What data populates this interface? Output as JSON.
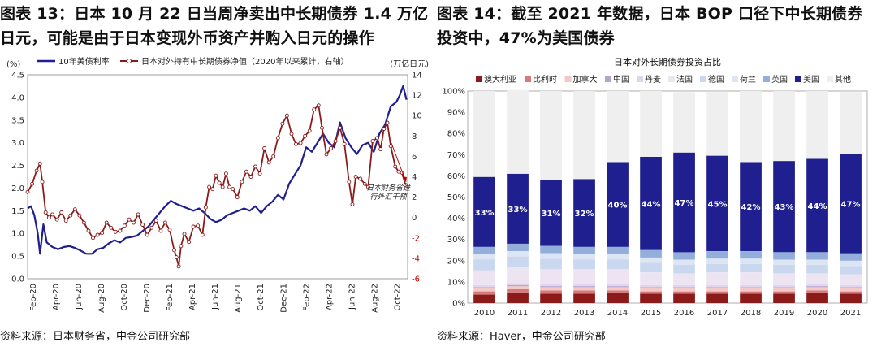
{
  "left": {
    "title": "图表 13：日本 10 月 22 日当周净卖出中长期债券 1.4 万亿日元，可能是由于日本变现外币资产并购入日元的操作",
    "source": "资料来源：日本财务省，中金公司研究部",
    "chart_data": {
      "type": "line",
      "left_unit": "(%)",
      "right_unit": "(万亿日元)",
      "left_ylim": [
        0,
        4.5
      ],
      "left_ticks": [
        "0.0",
        "0.5",
        "1.0",
        "1.5",
        "2.0",
        "2.5",
        "3.0",
        "3.5",
        "4.0",
        "4.5"
      ],
      "right_ylim": [
        -6,
        14
      ],
      "right_ticks": [
        "-6",
        "-4",
        "-2",
        "0",
        "2",
        "4",
        "6",
        "8",
        "10",
        "12",
        "14"
      ],
      "x_ticks": [
        "Feb-20",
        "Apr-20",
        "Jun-20",
        "Aug-20",
        "Oct-20",
        "Dec-20",
        "Feb-21",
        "Apr-21",
        "Jun-21",
        "Aug-21",
        "Oct-21",
        "Dec-21",
        "Feb-22",
        "Apr-22",
        "Jun-22",
        "Aug-22",
        "Oct-22"
      ],
      "x_range": [
        0,
        33.7
      ],
      "annotation": "日本财务省进行外汇干预",
      "series": [
        {
          "name": "10年美债利率",
          "axis": "left",
          "color": "#1F1F8F",
          "points": [
            [
              0,
              1.55
            ],
            [
              0.3,
              1.6
            ],
            [
              0.6,
              1.4
            ],
            [
              0.9,
              1.0
            ],
            [
              1.1,
              0.55
            ],
            [
              1.4,
              1.2
            ],
            [
              1.7,
              0.8
            ],
            [
              2.2,
              0.7
            ],
            [
              2.7,
              0.65
            ],
            [
              3.2,
              0.7
            ],
            [
              3.7,
              0.72
            ],
            [
              4.2,
              0.68
            ],
            [
              4.7,
              0.62
            ],
            [
              5.2,
              0.55
            ],
            [
              5.7,
              0.55
            ],
            [
              6.2,
              0.65
            ],
            [
              6.7,
              0.68
            ],
            [
              7.2,
              0.78
            ],
            [
              7.7,
              0.85
            ],
            [
              8.2,
              0.8
            ],
            [
              8.7,
              0.9
            ],
            [
              9.2,
              0.92
            ],
            [
              9.7,
              0.95
            ],
            [
              10.2,
              1.05
            ],
            [
              10.7,
              1.15
            ],
            [
              11.2,
              1.3
            ],
            [
              11.7,
              1.45
            ],
            [
              12.2,
              1.6
            ],
            [
              12.7,
              1.72
            ],
            [
              13.2,
              1.65
            ],
            [
              13.7,
              1.6
            ],
            [
              14.2,
              1.55
            ],
            [
              14.7,
              1.5
            ],
            [
              15.2,
              1.55
            ],
            [
              15.7,
              1.45
            ],
            [
              16.2,
              1.32
            ],
            [
              16.7,
              1.25
            ],
            [
              17.2,
              1.3
            ],
            [
              17.7,
              1.4
            ],
            [
              18.2,
              1.45
            ],
            [
              18.7,
              1.5
            ],
            [
              19.2,
              1.55
            ],
            [
              19.7,
              1.5
            ],
            [
              20.2,
              1.6
            ],
            [
              20.7,
              1.45
            ],
            [
              21.2,
              1.6
            ],
            [
              21.7,
              1.7
            ],
            [
              22.2,
              1.85
            ],
            [
              22.7,
              1.75
            ],
            [
              23.2,
              2.1
            ],
            [
              23.7,
              2.3
            ],
            [
              24.2,
              2.5
            ],
            [
              24.7,
              2.9
            ],
            [
              25.2,
              2.8
            ],
            [
              25.7,
              3.0
            ],
            [
              26.2,
              3.2
            ],
            [
              26.7,
              3.0
            ],
            [
              27.2,
              2.9
            ],
            [
              27.7,
              3.45
            ],
            [
              28.2,
              3.1
            ],
            [
              28.7,
              2.9
            ],
            [
              29.2,
              2.75
            ],
            [
              29.7,
              2.95
            ],
            [
              30.2,
              3.0
            ],
            [
              30.7,
              2.8
            ],
            [
              31.2,
              3.2
            ],
            [
              31.7,
              3.4
            ],
            [
              32.2,
              3.8
            ],
            [
              32.7,
              3.9
            ],
            [
              33.0,
              4.05
            ],
            [
              33.3,
              4.25
            ],
            [
              33.6,
              3.95
            ]
          ]
        },
        {
          "name": "日本对外持有中长期债券净值（2020年以来累计，右轴）",
          "axis": "right",
          "color": "#8B1A1A",
          "points": [
            [
              0,
              2.5
            ],
            [
              0.4,
              3.3
            ],
            [
              0.8,
              4.6
            ],
            [
              1.1,
              5.3
            ],
            [
              1.3,
              3.5
            ],
            [
              1.6,
              0.5
            ],
            [
              1.9,
              0.0
            ],
            [
              2.2,
              0.3
            ],
            [
              2.6,
              -0.2
            ],
            [
              3.0,
              0.5
            ],
            [
              3.4,
              -0.3
            ],
            [
              3.8,
              0.2
            ],
            [
              4.2,
              0.8
            ],
            [
              4.6,
              0.2
            ],
            [
              5.0,
              -0.5
            ],
            [
              5.4,
              -1.3
            ],
            [
              5.8,
              -2.0
            ],
            [
              6.2,
              -1.7
            ],
            [
              6.6,
              -1.5
            ],
            [
              7.0,
              -0.5
            ],
            [
              7.4,
              -1.0
            ],
            [
              7.8,
              -1.4
            ],
            [
              8.2,
              -1.3
            ],
            [
              8.6,
              -0.8
            ],
            [
              9.0,
              -0.2
            ],
            [
              9.4,
              -0.5
            ],
            [
              9.8,
              0.3
            ],
            [
              10.2,
              -0.7
            ],
            [
              10.6,
              -1.7
            ],
            [
              11.0,
              -1.0
            ],
            [
              11.4,
              -0.3
            ],
            [
              11.8,
              -1.3
            ],
            [
              12.2,
              -0.5
            ],
            [
              12.6,
              -1.2
            ],
            [
              13.0,
              -3.2
            ],
            [
              13.2,
              -3.9
            ],
            [
              13.4,
              -4.8
            ],
            [
              13.6,
              -2.8
            ],
            [
              13.9,
              -1.6
            ],
            [
              14.3,
              -2.4
            ],
            [
              14.7,
              -0.9
            ],
            [
              15.1,
              -0.8
            ],
            [
              15.5,
              -1.7
            ],
            [
              15.8,
              1.0
            ],
            [
              16.1,
              3.0
            ],
            [
              16.4,
              2.8
            ],
            [
              16.7,
              4.1
            ],
            [
              17.0,
              3.4
            ],
            [
              17.3,
              3.0
            ],
            [
              17.6,
              4.3
            ],
            [
              17.9,
              3.0
            ],
            [
              18.2,
              2.8
            ],
            [
              18.6,
              2.0
            ],
            [
              19.0,
              3.5
            ],
            [
              19.4,
              4.5
            ],
            [
              19.8,
              4.0
            ],
            [
              20.2,
              5.0
            ],
            [
              20.6,
              4.3
            ],
            [
              21.0,
              6.8
            ],
            [
              21.4,
              5.4
            ],
            [
              21.8,
              6.0
            ],
            [
              22.2,
              7.8
            ],
            [
              22.6,
              9.2
            ],
            [
              23.0,
              10.0
            ],
            [
              23.4,
              8.2
            ],
            [
              23.8,
              7.2
            ],
            [
              24.2,
              7.3
            ],
            [
              24.6,
              8.0
            ],
            [
              25.0,
              8.5
            ],
            [
              25.4,
              10.6
            ],
            [
              25.8,
              11.0
            ],
            [
              26.1,
              8.8
            ],
            [
              26.5,
              6.2
            ],
            [
              26.9,
              6.8
            ],
            [
              27.3,
              7.5
            ],
            [
              27.7,
              8.8
            ],
            [
              28.1,
              7.2
            ],
            [
              28.5,
              3.5
            ],
            [
              28.8,
              1.3
            ],
            [
              29.1,
              4.0
            ],
            [
              29.5,
              3.8
            ],
            [
              29.9,
              3.3
            ],
            [
              30.2,
              3.0
            ],
            [
              30.6,
              7.5
            ],
            [
              31.0,
              7.8
            ],
            [
              31.3,
              6.7
            ],
            [
              31.6,
              8.7
            ],
            [
              31.9,
              9.3
            ],
            [
              32.2,
              7.0
            ],
            [
              32.6,
              5.0
            ],
            [
              32.9,
              4.5
            ],
            [
              33.2,
              4.4
            ],
            [
              33.5,
              3.2
            ]
          ]
        }
      ]
    }
  },
  "right": {
    "title": "图表 14：截至 2021 年数据，日本 BOP 口径下中长期债券投资中，47%为美国债券",
    "source": "资料来源：Haver，中金公司研究部",
    "chart_data": {
      "type": "bar",
      "stacked": true,
      "title": "日本对外长期债券投资占比",
      "ylim": [
        0,
        100
      ],
      "y_ticks": [
        "0%",
        "10%",
        "20%",
        "30%",
        "40%",
        "50%",
        "60%",
        "70%",
        "80%",
        "90%",
        "100%"
      ],
      "categories": [
        "2010",
        "2011",
        "2012",
        "2013",
        "2014",
        "2015",
        "2016",
        "2017",
        "2018",
        "2019",
        "2020",
        "2021"
      ],
      "us_labels": [
        "33%",
        "33%",
        "31%",
        "32%",
        "40%",
        "44%",
        "47%",
        "45%",
        "42%",
        "43%",
        "44%",
        "47%"
      ],
      "series": [
        {
          "name": "澳大利亚",
          "color": "#8B1A1A",
          "values": [
            4,
            5,
            4.5,
            4.5,
            5,
            4.5,
            4.5,
            4.5,
            4.5,
            4.5,
            5,
            4.5
          ]
        },
        {
          "name": "比利时",
          "color": "#D87A7A",
          "values": [
            1.5,
            1.5,
            1.5,
            1.5,
            1,
            1,
            1,
            1,
            1,
            1,
            1,
            1
          ]
        },
        {
          "name": "加拿大",
          "color": "#F2C8C8",
          "values": [
            1.5,
            1.5,
            1.5,
            1.5,
            1.5,
            1.5,
            1.5,
            1.5,
            1.5,
            1.5,
            1.5,
            1.5
          ]
        },
        {
          "name": "中国",
          "color": "#B7A3CF",
          "values": [
            0.5,
            0.5,
            0.5,
            0.5,
            0.5,
            0.5,
            0.5,
            0.5,
            0.5,
            0.5,
            0.5,
            0.5
          ]
        },
        {
          "name": "丹麦",
          "color": "#E0D4EE",
          "values": [
            1,
            1,
            1,
            1,
            1,
            1,
            1,
            1,
            1,
            1,
            1,
            1
          ]
        },
        {
          "name": "法国",
          "color": "#EDE4F2",
          "values": [
            7,
            7.5,
            7,
            7,
            7,
            6,
            5.5,
            6,
            6,
            5.5,
            5,
            5
          ]
        },
        {
          "name": "德国",
          "color": "#C9D8EF",
          "values": [
            5,
            5,
            5,
            4.5,
            4.5,
            4.5,
            4,
            4,
            4,
            4,
            4,
            4
          ]
        },
        {
          "name": "荷兰",
          "color": "#DCE5F4",
          "values": [
            2.5,
            2.5,
            2.5,
            2.5,
            2.5,
            2.5,
            2.5,
            2.5,
            2.5,
            2.5,
            2.5,
            2.5
          ]
        },
        {
          "name": "英国",
          "color": "#93AEDB",
          "values": [
            3.5,
            3.5,
            3.5,
            3.5,
            3.5,
            3.5,
            3.5,
            3.5,
            3.5,
            3.5,
            3.5,
            3.5
          ]
        },
        {
          "name": "美国",
          "color": "#1F1F8F",
          "values": [
            33,
            33,
            31,
            32,
            40,
            44,
            47,
            45,
            42,
            43,
            44,
            47
          ]
        },
        {
          "name": "其他",
          "color": "#EFEFEF",
          "values": [
            40.5,
            39.5,
            42,
            41.5,
            33.5,
            31,
            28.5,
            30,
            33.5,
            33,
            32,
            29
          ]
        }
      ]
    }
  }
}
